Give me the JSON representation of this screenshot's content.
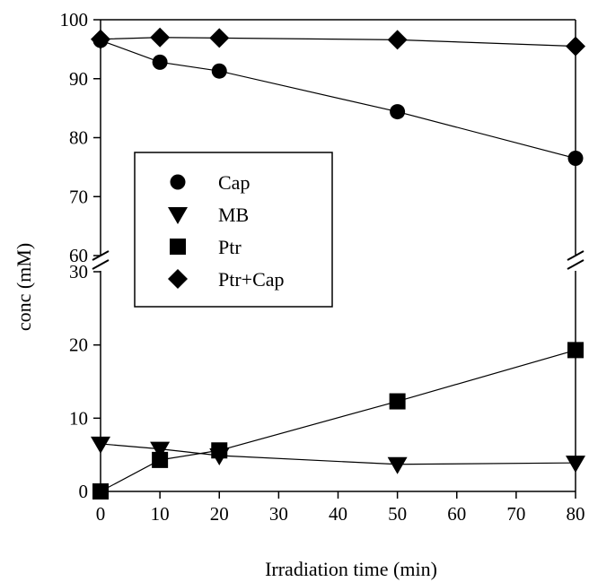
{
  "chart_data": {
    "type": "line",
    "xlabel": "Irradiation time (min)",
    "ylabel": "conc (mM)",
    "x_ticks": [
      "0",
      "10",
      "20",
      "30",
      "40",
      "50",
      "60",
      "70",
      "80"
    ],
    "xlim": [
      0,
      80
    ],
    "broken_y_axis": true,
    "y_upper": {
      "range": [
        60,
        100
      ],
      "ticks": [
        "100",
        "90",
        "80",
        "70",
        "60"
      ]
    },
    "y_lower": {
      "range": [
        0,
        30
      ],
      "ticks": [
        "30",
        "20",
        "10",
        "0"
      ]
    },
    "grid": false,
    "legend_position": "left-middle",
    "series": [
      {
        "name": "Cap",
        "marker": "circle",
        "segment": "upper",
        "x": [
          0,
          10,
          20,
          50,
          80
        ],
        "y": [
          96.5,
          92.8,
          91.3,
          84.4,
          76.5
        ]
      },
      {
        "name": "MB",
        "marker": "triangle-down",
        "segment": "lower",
        "x": [
          0,
          10,
          20,
          50,
          80
        ],
        "y": [
          6.5,
          5.8,
          4.9,
          3.7,
          3.9
        ]
      },
      {
        "name": "Ptr",
        "marker": "square",
        "segment": "lower",
        "x": [
          0,
          10,
          20,
          50,
          80
        ],
        "y": [
          0,
          4.3,
          5.6,
          12.3,
          19.3
        ]
      },
      {
        "name": "Ptr+Cap",
        "marker": "diamond",
        "segment": "upper",
        "x": [
          0,
          10,
          20,
          50,
          80
        ],
        "y": [
          96.7,
          97.0,
          96.9,
          96.6,
          95.5
        ]
      }
    ]
  }
}
